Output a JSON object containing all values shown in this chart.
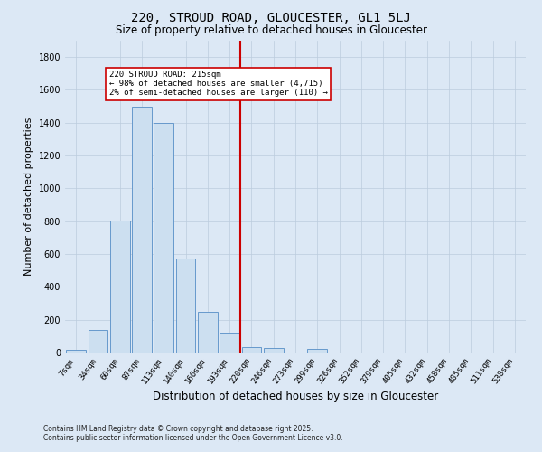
{
  "title": "220, STROUD ROAD, GLOUCESTER, GL1 5LJ",
  "subtitle": "Size of property relative to detached houses in Gloucester",
  "xlabel": "Distribution of detached houses by size in Gloucester",
  "ylabel": "Number of detached properties",
  "bar_labels": [
    "7sqm",
    "34sqm",
    "60sqm",
    "87sqm",
    "113sqm",
    "140sqm",
    "166sqm",
    "193sqm",
    "220sqm",
    "246sqm",
    "273sqm",
    "299sqm",
    "326sqm",
    "352sqm",
    "379sqm",
    "405sqm",
    "432sqm",
    "458sqm",
    "485sqm",
    "511sqm",
    "538sqm"
  ],
  "bar_values": [
    15,
    135,
    805,
    1500,
    1400,
    575,
    250,
    120,
    35,
    30,
    0,
    20,
    0,
    0,
    0,
    0,
    0,
    0,
    0,
    0,
    0
  ],
  "bar_color": "#ccdff0",
  "bar_edge_color": "#6699cc",
  "vline_color": "#cc0000",
  "annotation_text": "220 STROUD ROAD: 215sqm\n← 98% of detached houses are smaller (4,715)\n2% of semi-detached houses are larger (110) →",
  "annotation_box_color": "white",
  "annotation_box_edge": "#cc0000",
  "grid_color": "#bbccdd",
  "bg_color": "#dce8f5",
  "footer_line1": "Contains HM Land Registry data © Crown copyright and database right 2025.",
  "footer_line2": "Contains public sector information licensed under the Open Government Licence v3.0.",
  "ylim": [
    0,
    1900
  ],
  "yticks": [
    0,
    200,
    400,
    600,
    800,
    1000,
    1200,
    1400,
    1600,
    1800
  ]
}
